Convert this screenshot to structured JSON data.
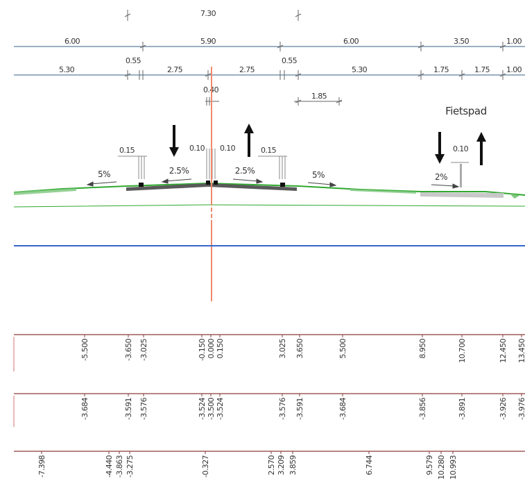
{
  "dimension_rows": {
    "top": [
      "7.30"
    ],
    "row1": [
      "6.00",
      "5.90",
      "6.00",
      "3.50",
      "1.00"
    ],
    "row2": [
      "5.30",
      "0.55",
      "2.75",
      "2.75",
      "0.55",
      "5.30",
      "1.75",
      "1.75",
      "1.00"
    ],
    "row3": [
      "0.40",
      "1.85"
    ]
  },
  "labels": {
    "fietspad": "Fietspad"
  },
  "annotations": {
    "curb_left": "0.15",
    "center_left": "0.10",
    "center_right": "0.10",
    "curb_right": "0.15",
    "bike_path_curb": "0.10"
  },
  "slopes": [
    "5%",
    "2.5%",
    "2.5%",
    "5%",
    "2%"
  ],
  "bands": {
    "offsets": [
      "-5.500",
      "-3.650",
      "-3.025",
      "-0.150",
      "0.000",
      "0.150",
      "3.025",
      "3.650",
      "5.500",
      "8.950",
      "10.700",
      "12.450",
      "13.450"
    ],
    "levels": [
      "-3.684",
      "-3.591",
      "-3.576",
      "-3.524",
      "-3.500",
      "-3.524",
      "-3.576",
      "-3.591",
      "-3.684",
      "-3.856",
      "-3.891",
      "-3.926",
      "-3.976"
    ],
    "terrain": [
      "-7.398",
      "-4.440",
      "-3.863",
      "-3.275",
      "-0.327",
      "2.570",
      "3.209",
      "3.859",
      "6.744",
      "9.579",
      "10.280",
      "10.993"
    ]
  },
  "colors": {
    "dimension_line": "#5c7fa0",
    "green_line": "#2fa82f",
    "blue_line": "#3366cc",
    "axis_line": "#f08a6a",
    "band_line": "#8a3b3b",
    "road": "#5a5a5a",
    "bike_path": "#c8c8c8"
  },
  "icons": [
    "arrow-down-icon",
    "arrow-up-icon",
    "arrow-down-icon",
    "arrow-up-icon"
  ]
}
